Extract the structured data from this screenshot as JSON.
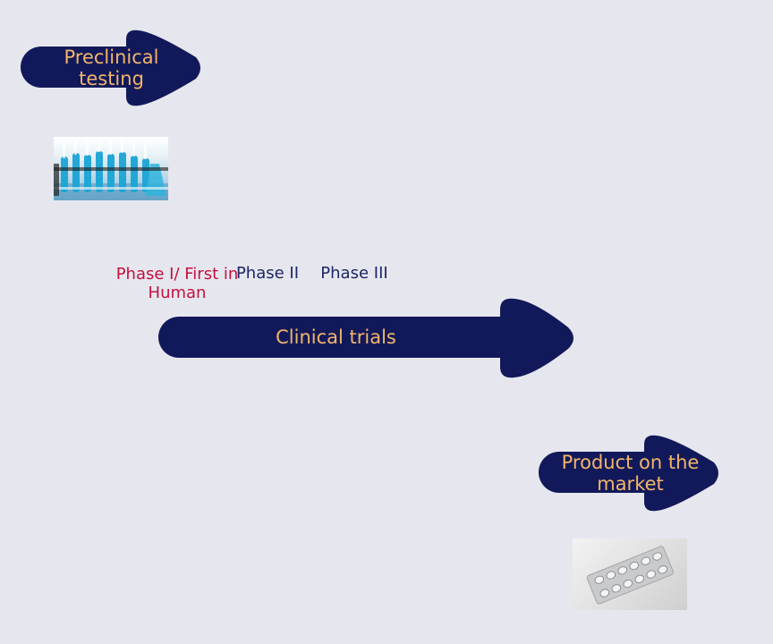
{
  "colors": {
    "background": "#e6e7ee",
    "arrow_fill": "#12195a",
    "arrow_text": "#f2b56b",
    "phase_highlight": "#c4113e",
    "phase_normal": "#1d2565"
  },
  "stages": {
    "preclinical": {
      "label": "Preclinical testing"
    },
    "clinical": {
      "label": "Clinical trials"
    },
    "market": {
      "label": "Product on the market"
    }
  },
  "phases": [
    {
      "label": "Phase I/ First in Human",
      "highlight": true
    },
    {
      "label": "Phase II",
      "highlight": false
    },
    {
      "label": "Phase III",
      "highlight": false
    }
  ],
  "images": {
    "lab": {
      "icon": "lab-test-tubes-photo"
    },
    "pills": {
      "icon": "pill-blister-pack-photo"
    }
  }
}
